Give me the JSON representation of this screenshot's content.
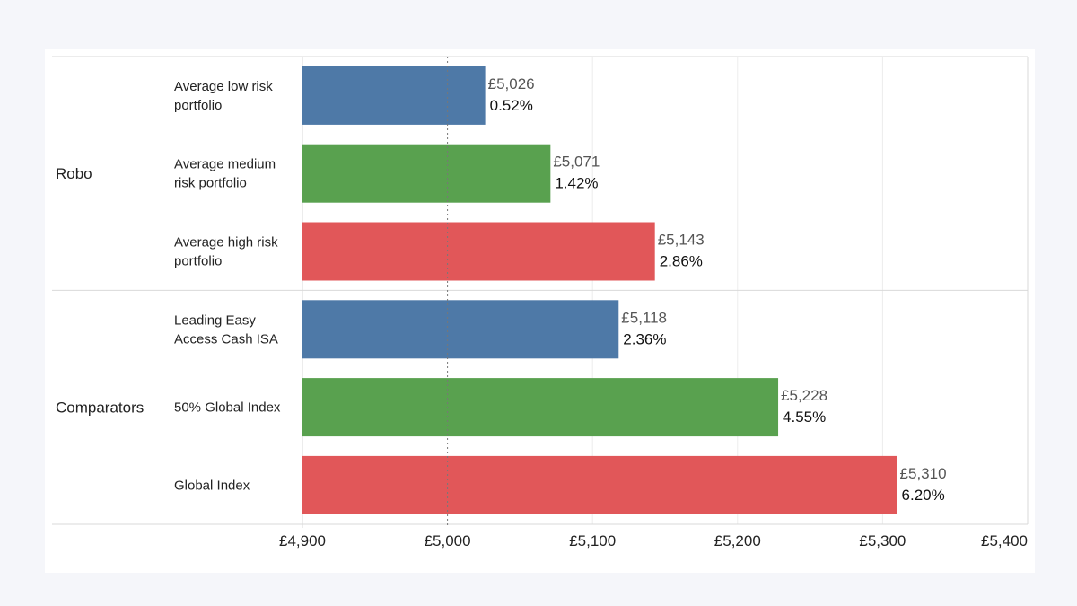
{
  "chart_data": {
    "type": "bar",
    "orientation": "horizontal",
    "title": "",
    "xlabel": "",
    "ylabel": "",
    "xlim": [
      4900,
      5400
    ],
    "x_ticks": [
      4900,
      5000,
      5100,
      5200,
      5300,
      5400
    ],
    "x_tick_labels": [
      "£4,900",
      "£5,000",
      "£5,100",
      "£5,200",
      "£5,300",
      "£5,400"
    ],
    "reference_line": 5000,
    "grid": true,
    "colors": {
      "blue": "#4e79a7",
      "green": "#59a14f",
      "red": "#e15759"
    },
    "groups": [
      {
        "name": "Robo",
        "bars": [
          {
            "category": [
              "Average low risk",
              "portfolio"
            ],
            "value": 5026,
            "value_label": "£5,026",
            "pct_label": "0.52%",
            "color": "#4e79a7"
          },
          {
            "category": [
              "Average medium",
              "risk portfolio"
            ],
            "value": 5071,
            "value_label": "£5,071",
            "pct_label": "1.42%",
            "color": "#59a14f"
          },
          {
            "category": [
              "Average high risk",
              "portfolio"
            ],
            "value": 5143,
            "value_label": "£5,143",
            "pct_label": "2.86%",
            "color": "#e15759"
          }
        ]
      },
      {
        "name": "Comparators",
        "bars": [
          {
            "category": [
              "Leading Easy",
              "Access Cash ISA"
            ],
            "value": 5118,
            "value_label": "£5,118",
            "pct_label": "2.36%",
            "color": "#4e79a7"
          },
          {
            "category": [
              "50% Global Index"
            ],
            "value": 5228,
            "value_label": "£5,228",
            "pct_label": "4.55%",
            "color": "#59a14f"
          },
          {
            "category": [
              "Global Index"
            ],
            "value": 5310,
            "value_label": "£5,310",
            "pct_label": "6.20%",
            "color": "#e15759"
          }
        ]
      }
    ]
  }
}
